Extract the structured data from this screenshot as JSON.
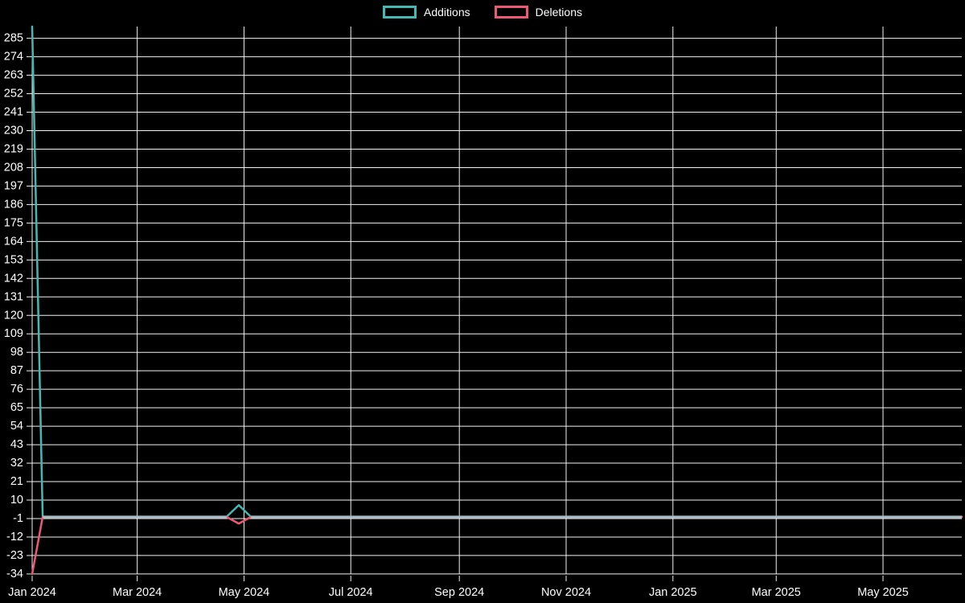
{
  "chart_data": {
    "type": "line",
    "title": "",
    "background_color": "#000000",
    "grid_color": "#f2f2f2",
    "text_color": "#ffffff",
    "overlap_line_color": "#a9bbc5",
    "legend": {
      "position": "top-center",
      "entries": [
        "Additions",
        "Deletions"
      ]
    },
    "x_axis": {
      "type": "date",
      "range": [
        "2024-01-01",
        "2025-06-15"
      ],
      "ticks": [
        {
          "value": "2024-01-01",
          "label": "Jan 2024"
        },
        {
          "value": "2024-03-01",
          "label": "Mar 2024"
        },
        {
          "value": "2024-05-01",
          "label": "May 2024"
        },
        {
          "value": "2024-07-01",
          "label": "Jul 2024"
        },
        {
          "value": "2024-09-01",
          "label": "Sep 2024"
        },
        {
          "value": "2024-11-01",
          "label": "Nov 2024"
        },
        {
          "value": "2025-01-01",
          "label": "Jan 2025"
        },
        {
          "value": "2025-03-01",
          "label": "Mar 2025"
        },
        {
          "value": "2025-05-01",
          "label": "May 2025"
        }
      ]
    },
    "y_axis": {
      "range": [
        -35,
        292
      ],
      "ticks": [
        285,
        274,
        263,
        252,
        241,
        230,
        219,
        208,
        197,
        186,
        175,
        164,
        153,
        142,
        131,
        120,
        109,
        98,
        87,
        76,
        65,
        54,
        43,
        32,
        21,
        10,
        -1,
        -12,
        -23,
        -34
      ]
    },
    "series": [
      {
        "name": "Additions",
        "color": "#46b8b4",
        "points": [
          {
            "x": "2024-01-01",
            "y": 292
          },
          {
            "x": "2024-01-07",
            "y": 0
          },
          {
            "x": "2024-04-21",
            "y": 0
          },
          {
            "x": "2024-04-28",
            "y": 7
          },
          {
            "x": "2024-05-05",
            "y": 0
          },
          {
            "x": "2025-06-15",
            "y": 0
          }
        ]
      },
      {
        "name": "Deletions",
        "color": "#ee5877",
        "points": [
          {
            "x": "2024-01-01",
            "y": -34
          },
          {
            "x": "2024-01-07",
            "y": 0
          },
          {
            "x": "2024-04-21",
            "y": 0
          },
          {
            "x": "2024-04-28",
            "y": -4
          },
          {
            "x": "2024-05-05",
            "y": 0
          },
          {
            "x": "2025-06-15",
            "y": 0
          }
        ]
      }
    ]
  }
}
